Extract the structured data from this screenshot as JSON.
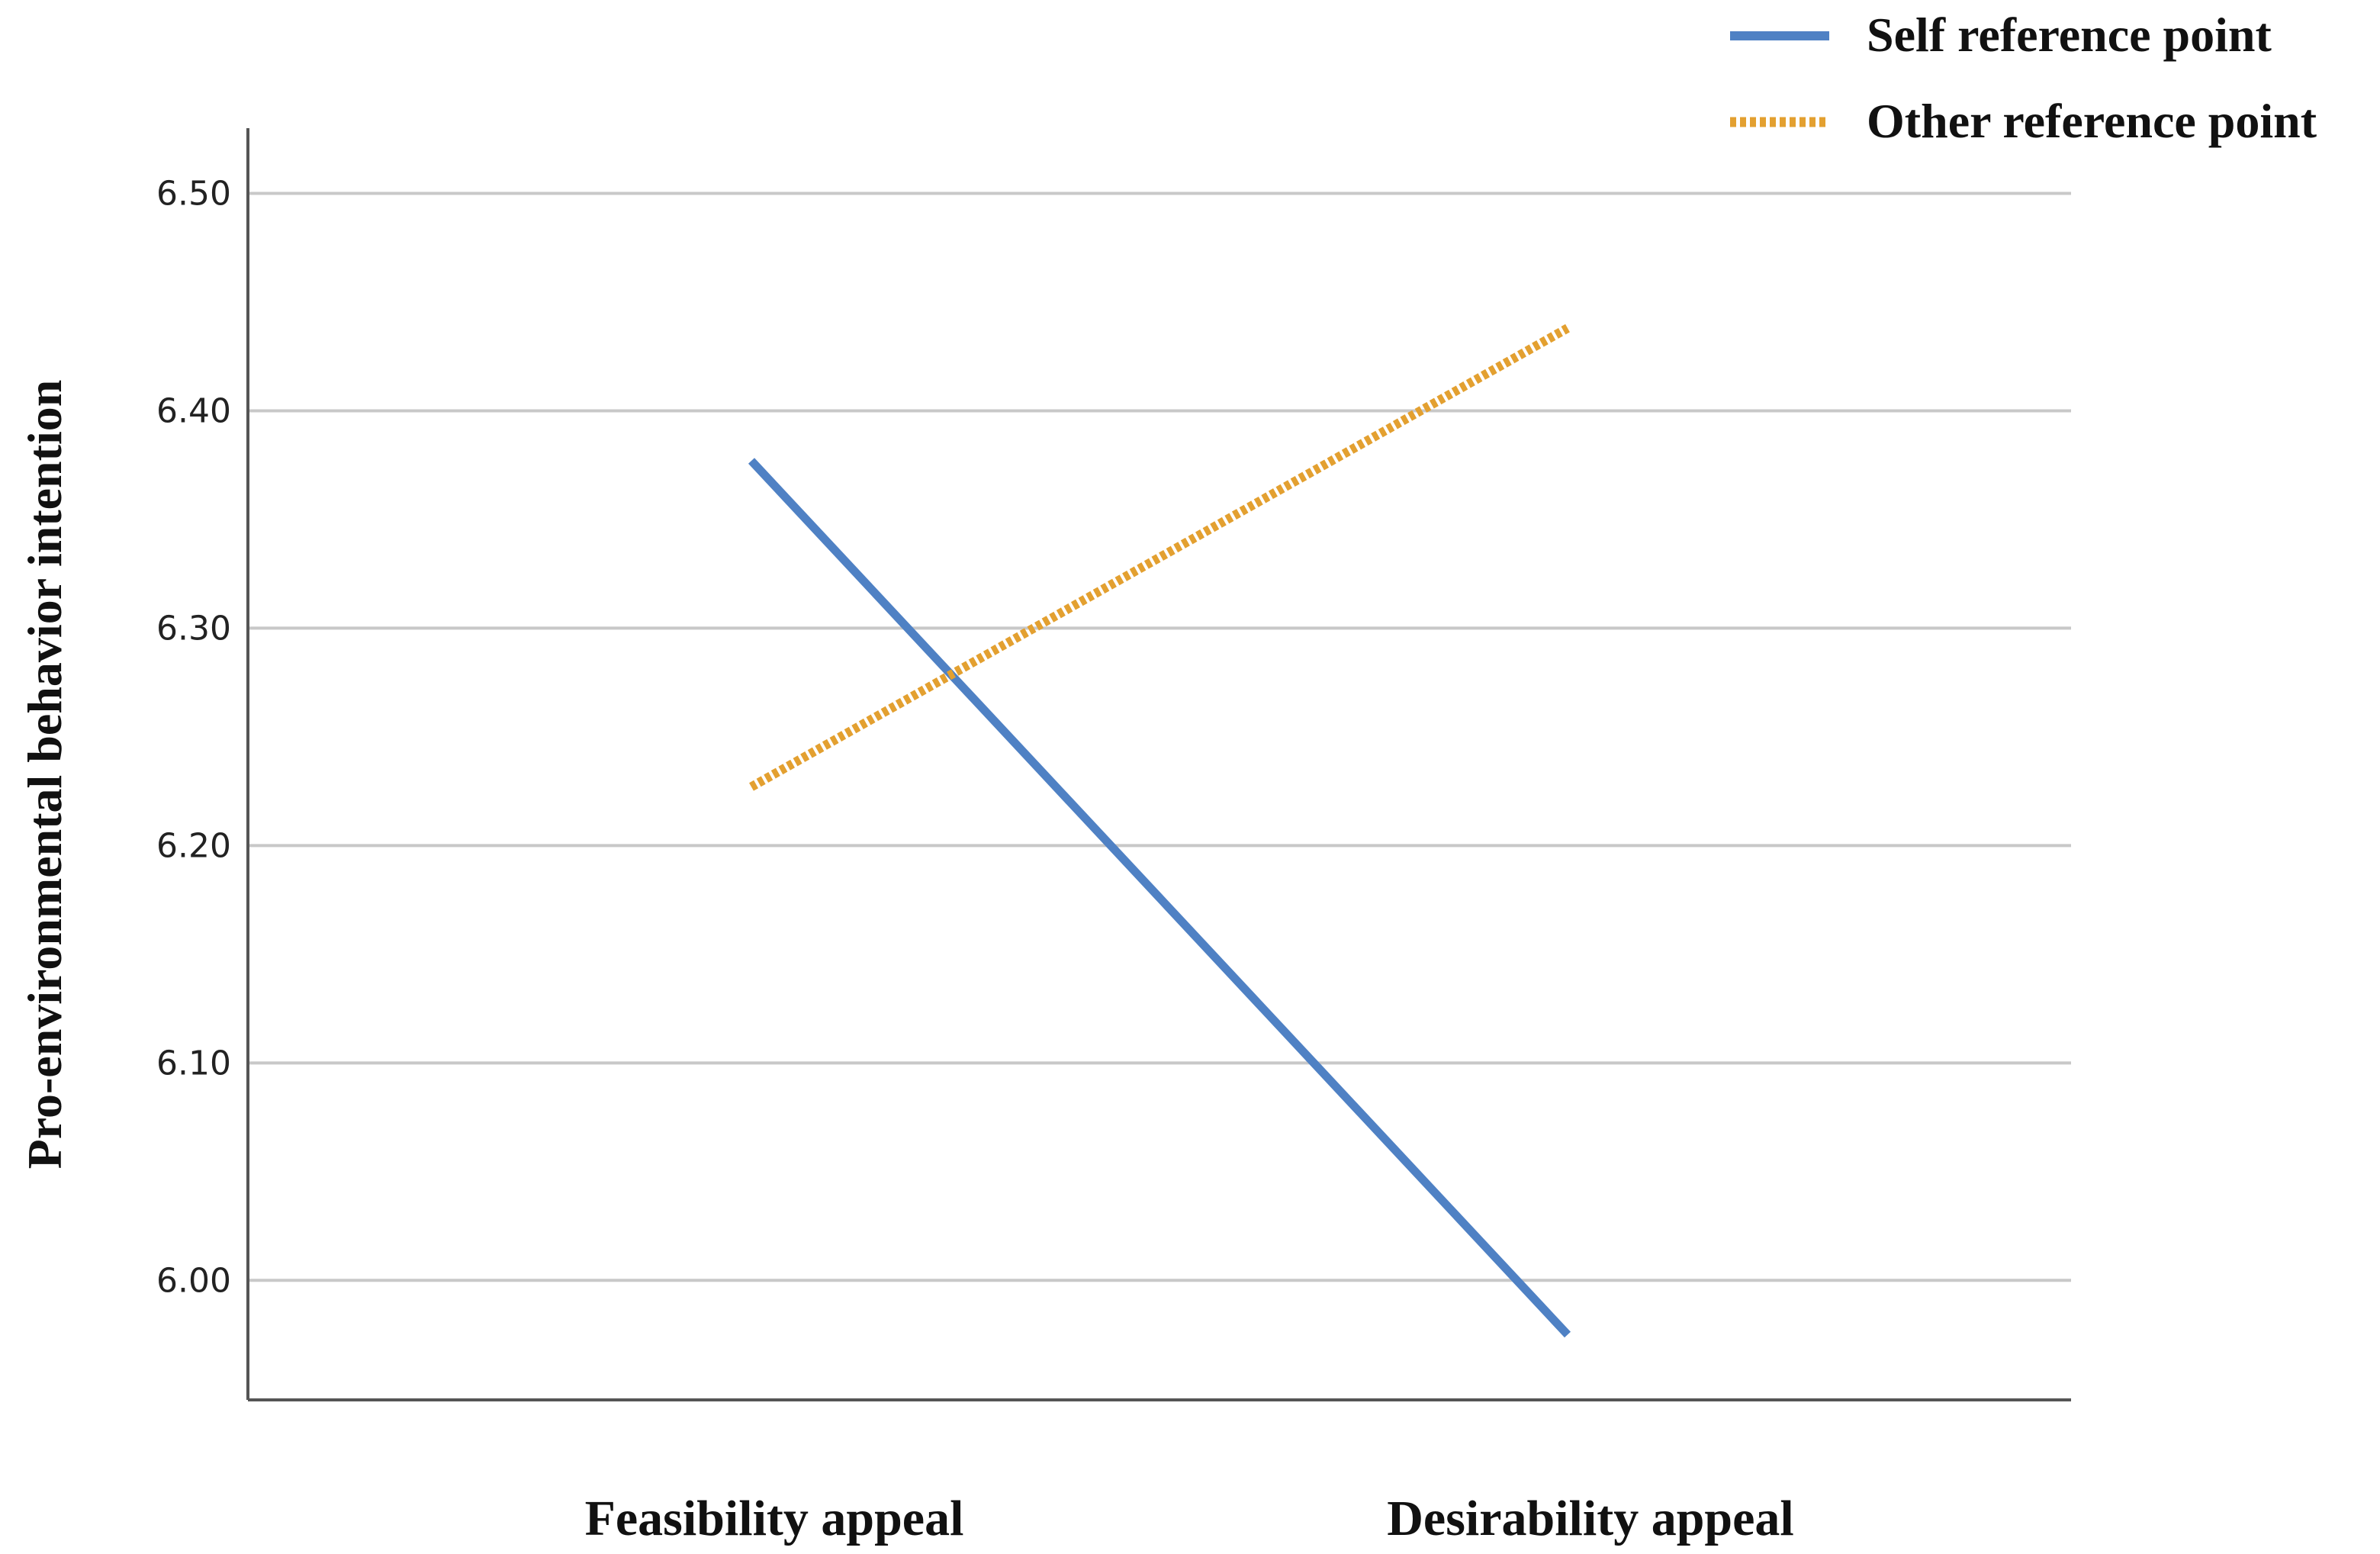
{
  "chart_data": {
    "type": "line",
    "title": "",
    "xlabel": "",
    "ylabel": "Pro-environmental behavior intention",
    "categories": [
      "Feasibility appeal",
      "Desirability appeal"
    ],
    "ylim": [
      5.945,
      6.53
    ],
    "yticks": [
      6.0,
      6.1,
      6.2,
      6.3,
      6.4,
      6.5
    ],
    "ytick_labels": [
      "6.00",
      "6.10",
      "6.20",
      "6.30",
      "6.40",
      "6.50"
    ],
    "grid": true,
    "legend_position": "top-right",
    "series": [
      {
        "name": "Self reference point",
        "values": [
          6.377,
          5.975
        ],
        "color": "#4f81c4",
        "style": "solid"
      },
      {
        "name": "Other reference point",
        "values": [
          6.227,
          6.438
        ],
        "color": "#e3a030",
        "style": "dotted"
      }
    ]
  }
}
